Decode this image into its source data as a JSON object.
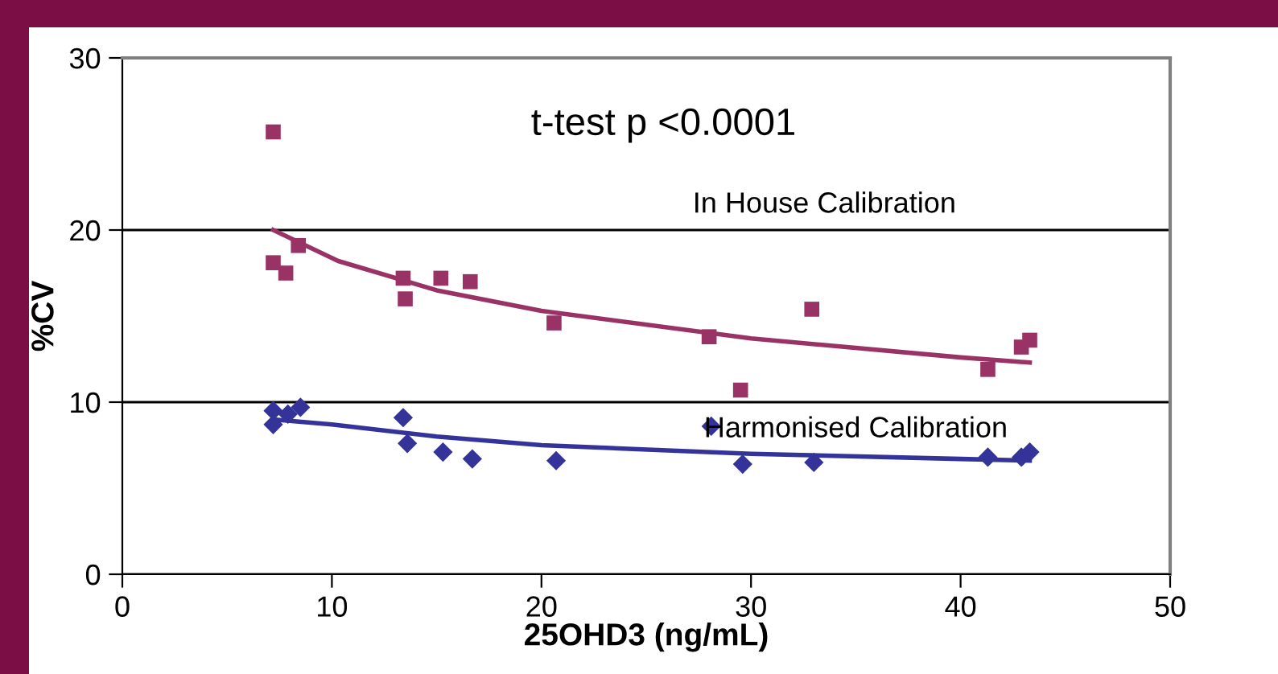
{
  "chart_data": {
    "type": "scatter",
    "xlabel": "25OHD3 (ng/mL)",
    "ylabel": "%CV",
    "xlim": [
      0,
      50
    ],
    "xticks": [
      0,
      10,
      20,
      30,
      40,
      50
    ],
    "ylim": [
      0,
      30
    ],
    "yticks": [
      0,
      10,
      20,
      30
    ],
    "grid": "y",
    "annotations": [
      "t-test p <0.0001",
      "In House Calibration",
      "Harmonised Calibration"
    ],
    "series": [
      {
        "marker": "square",
        "color": "#993366",
        "x": [
          7.2,
          7.2,
          7.8,
          8.4,
          13.4,
          13.5,
          15.2,
          16.6,
          20.6,
          28.0,
          29.5,
          32.9,
          41.3,
          42.9,
          43.3
        ],
        "values": [
          25.7,
          18.1,
          17.5,
          19.1,
          17.2,
          16.0,
          17.2,
          17.0,
          14.6,
          13.8,
          10.7,
          15.4,
          11.9,
          13.2,
          13.6
        ]
      },
      {
        "marker": "diamond",
        "color": "#333399",
        "x": [
          7.2,
          7.2,
          7.9,
          8.5,
          13.4,
          13.6,
          15.3,
          16.7,
          20.7,
          28.1,
          29.6,
          33.0,
          41.3,
          42.9,
          43.3
        ],
        "values": [
          9.5,
          8.7,
          9.3,
          9.7,
          9.1,
          7.6,
          7.1,
          6.7,
          6.6,
          8.6,
          6.4,
          6.5,
          6.8,
          6.8,
          7.1
        ]
      },
      {
        "type": "line",
        "color": "#993366",
        "x": [
          7.2,
          10.3,
          15,
          20,
          30,
          40,
          43.3
        ],
        "values": [
          20.0,
          18.2,
          16.5,
          15.3,
          13.7,
          12.6,
          12.3
        ]
      },
      {
        "type": "line",
        "color": "#333399",
        "x": [
          7.2,
          10,
          15,
          20,
          30,
          40,
          43.3
        ],
        "values": [
          9.0,
          8.7,
          8.0,
          7.5,
          7.0,
          6.7,
          6.6
        ]
      }
    ]
  }
}
